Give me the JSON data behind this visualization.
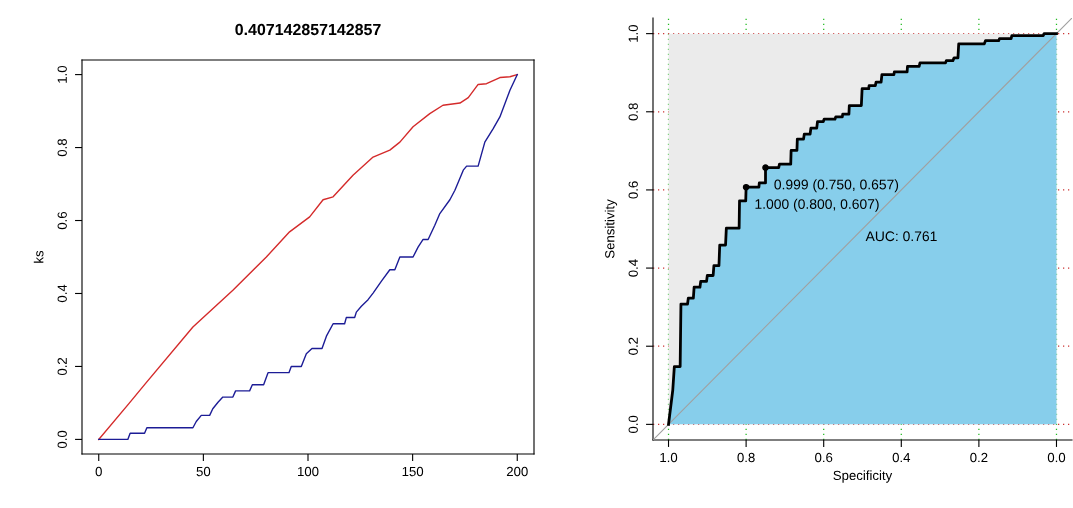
{
  "chart_data": [
    {
      "type": "line",
      "title": "0.407142857142857",
      "ylabel": "ks",
      "xlim": [
        -8,
        208
      ],
      "xticks": [
        0,
        50,
        100,
        150,
        200
      ],
      "ylim": [
        -0.04,
        1.04
      ],
      "yticks": [
        {
          "value": 0,
          "label": "0.0"
        },
        {
          "value": 0.2,
          "label": "0.2"
        },
        {
          "value": 0.4,
          "label": "0.4"
        },
        {
          "value": 0.6,
          "label": "0.6"
        },
        {
          "value": 0.8,
          "label": "0.8"
        },
        {
          "value": 1,
          "label": "1.0"
        }
      ],
      "grid": false,
      "legend": false,
      "series": [
        {
          "type": "line",
          "color": "#d42a2a",
          "x": [
            0,
            14.7,
            22.3,
            45,
            64.1,
            80.1,
            91.2,
            100.8,
            107.2,
            112,
            121.5,
            131.1,
            139.1,
            143.9,
            150.2,
            158.2,
            164.5,
            172.6,
            176.6,
            181.3,
            185.3,
            191.7,
            196.5,
            200
          ],
          "values": [
            0,
            0.1,
            0.153,
            0.308,
            0.409,
            0.5,
            0.569,
            0.61,
            0.657,
            0.665,
            0.724,
            0.774,
            0.793,
            0.815,
            0.857,
            0.893,
            0.916,
            0.922,
            0.937,
            0.973,
            0.975,
            0.992,
            0.994,
            1.0
          ]
        },
        {
          "type": "line",
          "color": "#1c1c96",
          "x": [
            0,
            13.9,
            15,
            21.9,
            23,
            45,
            46.6,
            49,
            53,
            54.5,
            57,
            59.3,
            64.1,
            65.4,
            72.1,
            73.4,
            78.8,
            80.9,
            90.9,
            92,
            96.8,
            99.2,
            101.9,
            106.7,
            108.8,
            112,
            117.5,
            118.3,
            122.3,
            123.1,
            125.5,
            128.7,
            131.1,
            135.1,
            139.1,
            141.5,
            143.9,
            150.2,
            152.6,
            155,
            157.4,
            160.6,
            163,
            167.8,
            170.2,
            174.2,
            175.8,
            181.3,
            184.5,
            188.5,
            191.7,
            196.5,
            200
          ],
          "values": [
            0,
            0,
            0.017,
            0.017,
            0.032,
            0.032,
            0.049,
            0.066,
            0.066,
            0.084,
            0.102,
            0.116,
            0.116,
            0.133,
            0.133,
            0.15,
            0.15,
            0.183,
            0.183,
            0.2,
            0.2,
            0.235,
            0.249,
            0.249,
            0.283,
            0.317,
            0.317,
            0.334,
            0.334,
            0.349,
            0.365,
            0.383,
            0.401,
            0.434,
            0.465,
            0.465,
            0.5,
            0.5,
            0.527,
            0.548,
            0.548,
            0.587,
            0.619,
            0.657,
            0.683,
            0.738,
            0.749,
            0.749,
            0.815,
            0.852,
            0.884,
            0.957,
            1.0
          ]
        }
      ]
    },
    {
      "type": "area",
      "xlabel": "Specificity",
      "ylabel": "Sensitivity",
      "xlim": [
        1.04,
        -0.04
      ],
      "xticks": [
        {
          "value": 1,
          "label": "1.0"
        },
        {
          "value": 0.8,
          "label": "0.8"
        },
        {
          "value": 0.6,
          "label": "0.6"
        },
        {
          "value": 0.4,
          "label": "0.4"
        },
        {
          "value": 0.2,
          "label": "0.2"
        },
        {
          "value": 0,
          "label": "0.0"
        }
      ],
      "ylim": [
        -0.04,
        1.04
      ],
      "yticks": [
        {
          "value": 0,
          "label": "0.0"
        },
        {
          "value": 0.2,
          "label": "0.2"
        },
        {
          "value": 0.4,
          "label": "0.4"
        },
        {
          "value": 0.6,
          "label": "0.6"
        },
        {
          "value": 0.8,
          "label": "0.8"
        },
        {
          "value": 1,
          "label": "1.0"
        }
      ],
      "grid": true,
      "legend": false,
      "annotations": [
        {
          "text": "0.999 (0.750, 0.657)",
          "x": 0.75,
          "y": 0.657
        },
        {
          "text": "1.000 (0.800, 0.607)",
          "x": 0.8,
          "y": 0.607
        },
        "AUC: 0.761"
      ],
      "series": [
        {
          "type": "area",
          "color": "#87ceeb",
          "x": [
            1.0,
            0.989,
            0.985,
            0.97,
            0.968,
            0.951,
            0.949,
            0.936,
            0.934,
            0.919,
            0.917,
            0.902,
            0.9,
            0.885,
            0.883,
            0.87,
            0.868,
            0.853,
            0.851,
            0.818,
            0.817,
            0.801,
            0.8,
            0.767,
            0.766,
            0.75,
            0.75,
            0.716,
            0.714,
            0.685,
            0.684,
            0.669,
            0.668,
            0.652,
            0.65,
            0.635,
            0.633,
            0.618,
            0.616,
            0.601,
            0.599,
            0.571,
            0.569,
            0.552,
            0.551,
            0.535,
            0.534,
            0.503,
            0.501,
            0.484,
            0.483,
            0.467,
            0.465,
            0.452,
            0.45,
            0.419,
            0.418,
            0.385,
            0.384,
            0.354,
            0.352,
            0.286,
            0.284,
            0.267,
            0.264,
            0.254,
            0.252,
            0.186,
            0.183,
            0.149,
            0.147,
            0.117,
            0.115,
            0.034,
            0.032,
            0.0
          ],
          "values": [
            0,
            0.088,
            0.148,
            0.148,
            0.308,
            0.308,
            0.323,
            0.323,
            0.351,
            0.351,
            0.366,
            0.366,
            0.381,
            0.381,
            0.406,
            0.406,
            0.459,
            0.459,
            0.502,
            0.502,
            0.572,
            0.572,
            0.607,
            0.607,
            0.618,
            0.618,
            0.657,
            0.657,
            0.666,
            0.666,
            0.701,
            0.701,
            0.73,
            0.73,
            0.743,
            0.743,
            0.758,
            0.758,
            0.775,
            0.775,
            0.781,
            0.781,
            0.787,
            0.787,
            0.794,
            0.794,
            0.816,
            0.816,
            0.859,
            0.859,
            0.867,
            0.867,
            0.876,
            0.876,
            0.895,
            0.895,
            0.902,
            0.902,
            0.916,
            0.916,
            0.925,
            0.925,
            0.931,
            0.931,
            0.938,
            0.938,
            0.974,
            0.974,
            0.982,
            0.982,
            0.987,
            0.987,
            0.995,
            0.995,
            1.0,
            1.0
          ]
        },
        {
          "type": "line",
          "color": "#a0a0a0",
          "x": [
            1.04,
            -0.04
          ],
          "values": [
            -0.04,
            1.04
          ]
        },
        {
          "type": "scatter",
          "color": "#000000",
          "marker": "circle",
          "x": [
            0.8,
            0.75
          ],
          "values": [
            0.607,
            0.657
          ]
        }
      ]
    }
  ]
}
